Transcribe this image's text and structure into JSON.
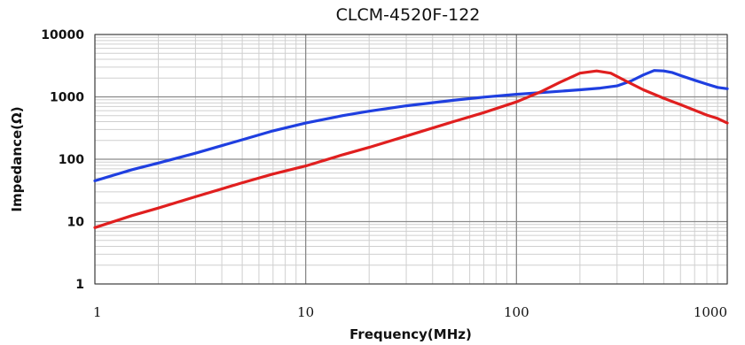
{
  "chart_data": {
    "type": "line",
    "title": "CLCM-4520F-122",
    "xlabel": "Frequency(MHz)",
    "ylabel": "Impedance(Ω)",
    "x_scale": "log",
    "y_scale": "log",
    "xlim": [
      1,
      1000
    ],
    "ylim": [
      1,
      10000
    ],
    "x_ticks": [
      1,
      10,
      100,
      1000
    ],
    "x_tick_labels": [
      "1",
      "10",
      "100",
      "1000"
    ],
    "y_ticks": [
      1,
      10,
      100,
      1000,
      10000
    ],
    "y_tick_labels": [
      "1",
      "10",
      "100",
      "1000",
      "10000"
    ],
    "grid": true,
    "legend": "none",
    "series": [
      {
        "color": "#1f3fe0",
        "x": [
          1,
          1.5,
          2,
          3,
          5,
          7,
          10,
          15,
          20,
          30,
          50,
          70,
          100,
          150,
          200,
          250,
          300,
          350,
          400,
          450,
          500,
          550,
          600,
          700,
          800,
          900,
          1000
        ],
        "y": [
          45,
          68,
          87,
          125,
          205,
          285,
          380,
          500,
          590,
          720,
          880,
          990,
          1100,
          1210,
          1300,
          1380,
          1500,
          1800,
          2250,
          2650,
          2600,
          2450,
          2200,
          1850,
          1600,
          1420,
          1350
        ]
      },
      {
        "color": "#e01f1f",
        "x": [
          1,
          1.5,
          2,
          3,
          5,
          7,
          10,
          15,
          20,
          30,
          50,
          70,
          100,
          130,
          160,
          200,
          240,
          280,
          330,
          400,
          500,
          600,
          700,
          800,
          900,
          1000
        ],
        "y": [
          8,
          12.5,
          16.5,
          25,
          42,
          58,
          78,
          118,
          155,
          235,
          400,
          560,
          830,
          1200,
          1700,
          2400,
          2600,
          2400,
          1800,
          1300,
          950,
          750,
          610,
          510,
          450,
          380
        ]
      }
    ]
  }
}
